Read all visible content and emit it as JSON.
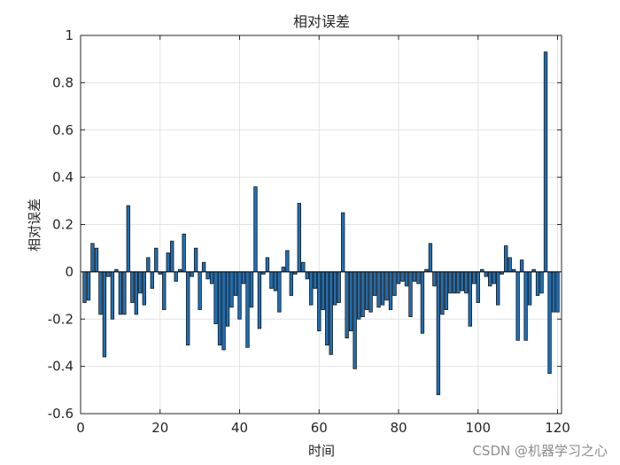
{
  "chart_data": {
    "type": "bar",
    "title": "相对误差",
    "xlabel": "时间",
    "ylabel": "相对误差",
    "xlim": [
      0,
      121
    ],
    "ylim": [
      -0.6,
      1
    ],
    "xticks": [
      0,
      20,
      40,
      60,
      80,
      100,
      120
    ],
    "yticks": [
      -0.6,
      -0.4,
      -0.2,
      0,
      0.2,
      0.4,
      0.6,
      0.8,
      1
    ],
    "grid": true,
    "bar_color": "#1f6fb5",
    "bar_edge_color": "#1a1a1a",
    "x": [
      1,
      2,
      3,
      4,
      5,
      6,
      7,
      8,
      9,
      10,
      11,
      12,
      13,
      14,
      15,
      16,
      17,
      18,
      19,
      20,
      21,
      22,
      23,
      24,
      25,
      26,
      27,
      28,
      29,
      30,
      31,
      32,
      33,
      34,
      35,
      36,
      37,
      38,
      39,
      40,
      41,
      42,
      43,
      44,
      45,
      46,
      47,
      48,
      49,
      50,
      51,
      52,
      53,
      54,
      55,
      56,
      57,
      58,
      59,
      60,
      61,
      62,
      63,
      64,
      65,
      66,
      67,
      68,
      69,
      70,
      71,
      72,
      73,
      74,
      75,
      76,
      77,
      78,
      79,
      80,
      81,
      82,
      83,
      84,
      85,
      86,
      87,
      88,
      89,
      90,
      91,
      92,
      93,
      94,
      95,
      96,
      97,
      98,
      99,
      100,
      101,
      102,
      103,
      104,
      105,
      106,
      107,
      108,
      109,
      110,
      111,
      112,
      113,
      114,
      115,
      116,
      117,
      118,
      119,
      120
    ],
    "values": [
      -0.13,
      -0.12,
      0.12,
      0.1,
      -0.18,
      -0.36,
      -0.02,
      -0.2,
      0.01,
      -0.18,
      -0.18,
      0.28,
      -0.13,
      -0.18,
      -0.09,
      -0.14,
      0.06,
      -0.07,
      0.1,
      -0.01,
      -0.16,
      0.08,
      0.13,
      -0.04,
      0.01,
      0.16,
      -0.31,
      -0.02,
      0.1,
      -0.16,
      0.04,
      -0.03,
      -0.05,
      -0.22,
      -0.31,
      -0.33,
      -0.23,
      -0.15,
      -0.1,
      -0.2,
      -0.05,
      -0.32,
      -0.15,
      0.36,
      -0.24,
      -0.01,
      0.06,
      -0.07,
      -0.08,
      -0.17,
      0.02,
      0.09,
      -0.1,
      -0.01,
      0.29,
      0.04,
      -0.03,
      -0.14,
      -0.07,
      -0.25,
      -0.16,
      -0.31,
      -0.35,
      -0.14,
      -0.13,
      0.25,
      -0.28,
      -0.25,
      -0.41,
      -0.2,
      -0.19,
      -0.16,
      -0.17,
      -0.1,
      -0.15,
      -0.14,
      -0.12,
      -0.16,
      -0.1,
      -0.05,
      -0.04,
      -0.06,
      -0.19,
      -0.04,
      -0.05,
      -0.26,
      0.01,
      0.12,
      -0.06,
      -0.52,
      -0.18,
      -0.16,
      -0.09,
      -0.09,
      -0.09,
      -0.08,
      -0.09,
      -0.23,
      -0.05,
      -0.13,
      0.01,
      -0.02,
      -0.06,
      -0.05,
      -0.14,
      -0.01,
      0.11,
      0.06,
      0.01,
      -0.29,
      0.05,
      -0.29,
      -0.14,
      0.01,
      -0.1,
      -0.09,
      0.93,
      -0.43,
      -0.17,
      -0.17
    ]
  },
  "watermark": "CSDN @机器学习之心",
  "colors": {
    "grid": "#e3e3e3",
    "axis": "#262626",
    "bars": "#1f6fb5"
  }
}
